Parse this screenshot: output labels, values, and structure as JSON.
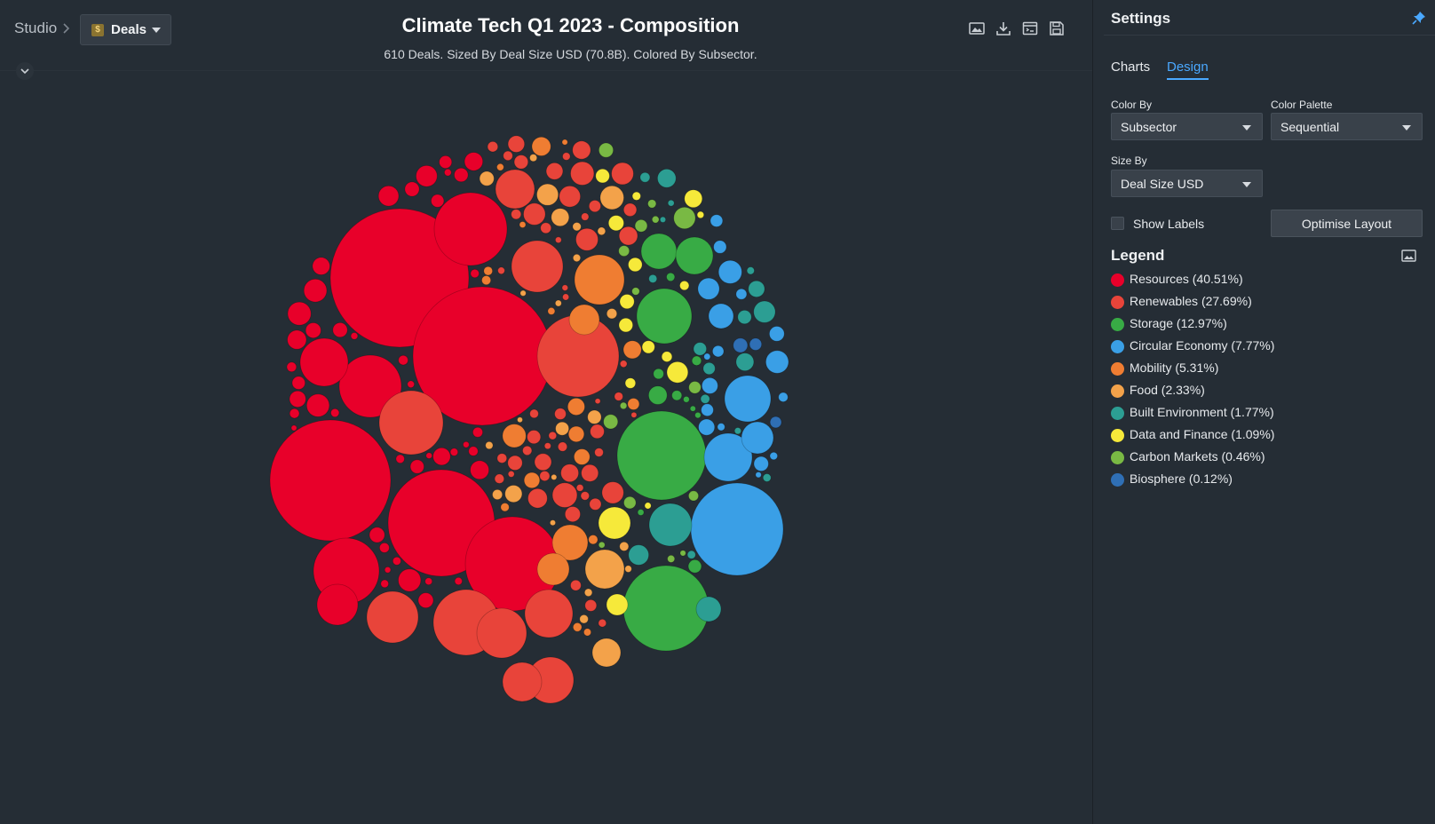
{
  "breadcrumb": {
    "root": "Studio",
    "current": "Deals",
    "current_icon": "dollar-tag-icon"
  },
  "chart_header": {
    "title": "Climate Tech Q1 2023 - Composition",
    "subtitle": "610 Deals. Sized By Deal Size USD (70.8B). Colored By Subsector."
  },
  "toolbar_icons": [
    "image-icon",
    "download-icon",
    "embed-icon",
    "save-icon"
  ],
  "settings": {
    "title": "Settings",
    "tabs": [
      {
        "label": "Charts",
        "active": false
      },
      {
        "label": "Design",
        "active": true
      }
    ],
    "color_by": {
      "label": "Color By",
      "value": "Subsector"
    },
    "color_palette": {
      "label": "Color Palette",
      "value": "Sequential"
    },
    "size_by": {
      "label": "Size By",
      "value": "Deal Size USD"
    },
    "show_labels": {
      "label": "Show Labels",
      "checked": false
    },
    "optimise_button": "Optimise Layout",
    "legend_title": "Legend"
  },
  "accent_color": "#4aa8ff",
  "chart_data": {
    "type": "packed-bubble",
    "title": "Climate Tech Q1 2023 - Composition",
    "subtitle": "610 Deals. Sized By Deal Size USD (70.8B). Colored By Subsector.",
    "total_deals": 610,
    "total_size": "70.8B",
    "legend": [
      {
        "label": "Resources (40.51%)",
        "share": 40.51,
        "color": "#e8002a"
      },
      {
        "label": "Renewables (27.69%)",
        "share": 27.69,
        "color": "#e8443a"
      },
      {
        "label": "Storage (12.97%)",
        "share": 12.97,
        "color": "#38ab45"
      },
      {
        "label": "Circular Economy (7.77%)",
        "share": 7.77,
        "color": "#3a9fe6"
      },
      {
        "label": "Mobility (5.31%)",
        "share": 5.31,
        "color": "#ef7d32"
      },
      {
        "label": "Food (2.33%)",
        "share": 2.33,
        "color": "#f3a24a"
      },
      {
        "label": "Built Environment (1.77%)",
        "share": 1.77,
        "color": "#2c9e93"
      },
      {
        "label": "Data and Finance (1.09%)",
        "share": 1.09,
        "color": "#f6e93a"
      },
      {
        "label": "Carbon Markets (0.46%)",
        "share": 0.46,
        "color": "#79b944"
      },
      {
        "label": "Biosphere (0.12%)",
        "share": 0.12,
        "color": "#2f6fb5"
      }
    ]
  }
}
